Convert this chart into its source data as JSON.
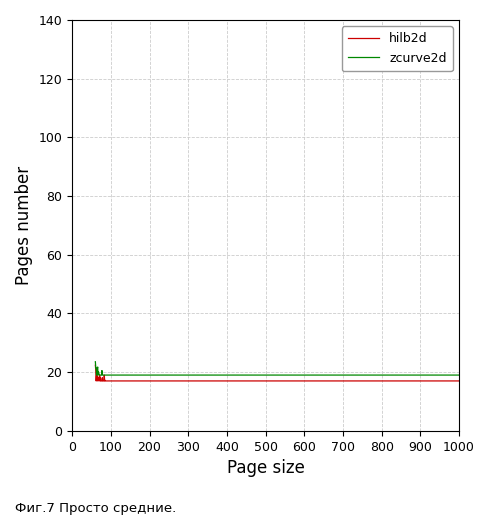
{
  "xlabel": "Page size",
  "ylabel": "Pages number",
  "caption": "Фиг.7 Просто средние.",
  "xlim": [
    0,
    1000
  ],
  "ylim": [
    0,
    140
  ],
  "xticks": [
    0,
    100,
    200,
    300,
    400,
    500,
    600,
    700,
    800,
    900,
    1000
  ],
  "yticks": [
    0,
    20,
    40,
    60,
    80,
    100,
    120,
    140
  ],
  "hilb2d_color": "#cc0000",
  "zcurve2d_color": "#008800",
  "legend_labels": [
    "hilb2d",
    "zcurve2d"
  ],
  "background_color": "#ffffff",
  "grid_color": "#cccccc"
}
